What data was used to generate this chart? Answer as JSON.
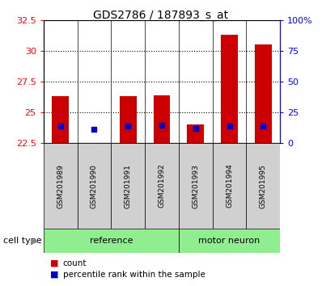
{
  "title": "GDS2786 / 187893_s_at",
  "samples": [
    "GSM201989",
    "GSM201990",
    "GSM201991",
    "GSM201992",
    "GSM201993",
    "GSM201994",
    "GSM201995"
  ],
  "groups": [
    "reference",
    "reference",
    "reference",
    "reference",
    "motor neuron",
    "motor neuron",
    "motor neuron"
  ],
  "bar_bottom": 22.5,
  "bar_heights": [
    26.3,
    22.52,
    26.3,
    26.4,
    24.0,
    31.3,
    30.5
  ],
  "blue_y_data": [
    23.9,
    23.6,
    23.85,
    23.95,
    23.7,
    23.9,
    23.9
  ],
  "ylim_left": [
    22.5,
    32.5
  ],
  "ylim_right": [
    0,
    100
  ],
  "yticks_left": [
    22.5,
    25.0,
    27.5,
    30.0,
    32.5
  ],
  "ytick_labels_left": [
    "22.5",
    "25",
    "27.5",
    "30",
    "32.5"
  ],
  "ytick_labels_right": [
    "0",
    "25",
    "50",
    "75",
    "100%"
  ],
  "yticks_right": [
    0,
    25,
    50,
    75,
    100
  ],
  "bar_color": "#CC0000",
  "blue_color": "#0000CC",
  "bg_color": "#ffffff",
  "gray_box_color": "#d0d0d0",
  "green_color": "#90EE90",
  "legend_count_label": "count",
  "legend_pct_label": "percentile rank within the sample",
  "cell_type_label": "cell type",
  "title_fontsize": 10
}
